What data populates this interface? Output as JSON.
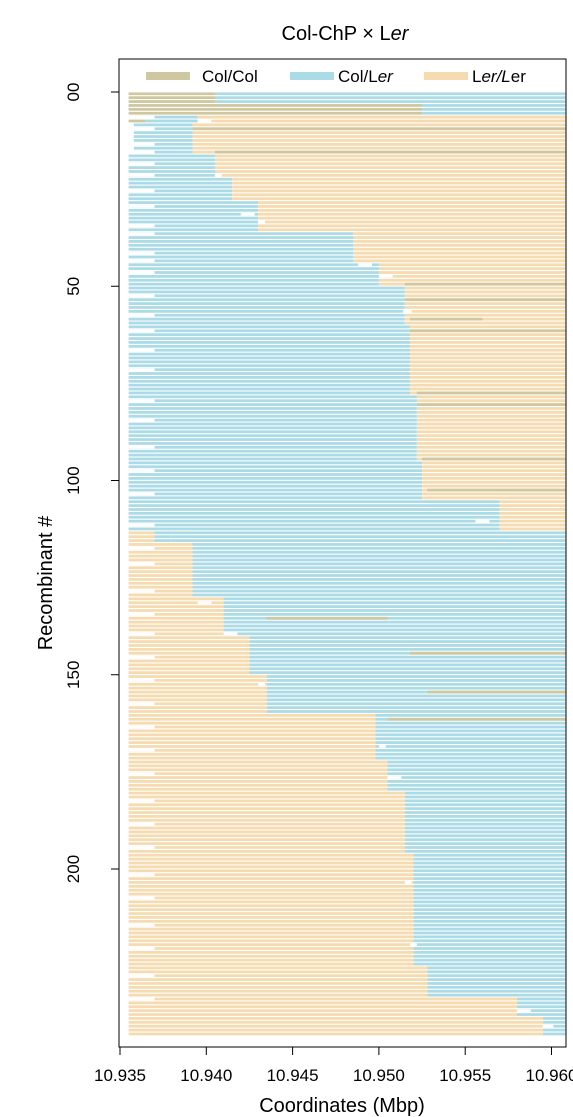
{
  "chart_data": {
    "type": "bar",
    "orientation": "horizontal-segments",
    "title": "Col-ChP × Ler",
    "title_parts": [
      "Col-ChP × L",
      "er"
    ],
    "xlabel": "Coordinates (Mbp)",
    "ylabel": "Recombinant #",
    "xlim": [
      10.935,
      10.961
    ],
    "ylim": [
      0,
      243
    ],
    "y_inverted": true,
    "x_ticks": [
      10.935,
      10.94,
      10.945,
      10.95,
      10.955,
      10.96
    ],
    "x_tick_labels": [
      "10.935",
      "10.940",
      "10.945",
      "10.950",
      "10.955",
      "10.960"
    ],
    "y_ticks": [
      0,
      50,
      100,
      150,
      200
    ],
    "y_tick_labels": [
      "00",
      "50",
      "100",
      "150",
      "200"
    ],
    "legend_position": "top",
    "legend": [
      {
        "key": "colcol",
        "label": "Col/Col",
        "parts": [
          "Col/Col",
          ""
        ]
      },
      {
        "key": "colLer",
        "label": "Col/Ler",
        "parts": [
          "Col/L",
          "er"
        ]
      },
      {
        "key": "LerLer",
        "label": "Ler/Ler",
        "parts": [
          "L",
          "er/L",
          "er"
        ]
      }
    ],
    "colors": {
      "colcol": "#cfc79f",
      "colLer": "#abdbe6",
      "LerLer": "#f6dbb0",
      "gap": "#ffffff"
    },
    "n_rows": 243,
    "blocks": [
      {
        "from": 0,
        "to": 3,
        "segments": [
          [
            10.9355,
            10.9405,
            "colcol"
          ],
          [
            10.9405,
            10.9525,
            "colLer"
          ],
          [
            10.9525,
            10.9608,
            "colLer"
          ]
        ]
      },
      {
        "from": 3,
        "to": 6,
        "segments": [
          [
            10.9355,
            10.9525,
            "colcol"
          ],
          [
            10.9525,
            10.9608,
            "colLer"
          ]
        ]
      },
      {
        "from": 6,
        "to": 8,
        "segments": [
          [
            10.9355,
            10.9365,
            "colcol"
          ],
          [
            10.9365,
            10.9395,
            "colLer"
          ],
          [
            10.9395,
            10.9608,
            "LerLer"
          ]
        ]
      },
      {
        "from": 8,
        "to": 16,
        "segments": [
          [
            10.9358,
            10.937,
            "colLer"
          ],
          [
            10.937,
            10.9392,
            "colLer"
          ],
          [
            10.9392,
            10.9608,
            "LerLer"
          ]
        ]
      },
      {
        "from": 16,
        "to": 22,
        "segments": [
          [
            10.9355,
            10.937,
            "colLer"
          ],
          [
            10.937,
            10.9405,
            "colLer"
          ],
          [
            10.9405,
            10.9608,
            "LerLer"
          ]
        ]
      },
      {
        "from": 22,
        "to": 28,
        "segments": [
          [
            10.9355,
            10.937,
            "colLer"
          ],
          [
            10.937,
            10.9415,
            "colLer"
          ],
          [
            10.9415,
            10.9608,
            "LerLer"
          ]
        ]
      },
      {
        "from": 28,
        "to": 36,
        "segments": [
          [
            10.9355,
            10.937,
            "colLer"
          ],
          [
            10.937,
            10.943,
            "colLer"
          ],
          [
            10.943,
            10.9608,
            "LerLer"
          ]
        ]
      },
      {
        "from": 36,
        "to": 44,
        "segments": [
          [
            10.9355,
            10.937,
            "colLer"
          ],
          [
            10.937,
            10.9485,
            "colLer"
          ],
          [
            10.9485,
            10.9608,
            "LerLer"
          ]
        ]
      },
      {
        "from": 44,
        "to": 50,
        "segments": [
          [
            10.9355,
            10.937,
            "colLer"
          ],
          [
            10.937,
            10.95,
            "colLer"
          ],
          [
            10.95,
            10.9608,
            "LerLer"
          ]
        ]
      },
      {
        "from": 50,
        "to": 60,
        "segments": [
          [
            10.9355,
            10.937,
            "colLer"
          ],
          [
            10.937,
            10.9515,
            "colLer"
          ],
          [
            10.9515,
            10.9608,
            "LerLer"
          ]
        ]
      },
      {
        "from": 60,
        "to": 78,
        "segments": [
          [
            10.9355,
            10.937,
            "colLer"
          ],
          [
            10.937,
            10.9518,
            "colLer"
          ],
          [
            10.9518,
            10.9608,
            "LerLer"
          ]
        ]
      },
      {
        "from": 78,
        "to": 95,
        "segments": [
          [
            10.9355,
            10.937,
            "colLer"
          ],
          [
            10.937,
            10.9522,
            "colLer"
          ],
          [
            10.9522,
            10.9608,
            "LerLer"
          ]
        ]
      },
      {
        "from": 95,
        "to": 105,
        "segments": [
          [
            10.9355,
            10.937,
            "colLer"
          ],
          [
            10.937,
            10.9525,
            "colLer"
          ],
          [
            10.9525,
            10.9608,
            "LerLer"
          ]
        ]
      },
      {
        "from": 105,
        "to": 113,
        "segments": [
          [
            10.9355,
            10.937,
            "colLer"
          ],
          [
            10.937,
            10.957,
            "colLer"
          ],
          [
            10.957,
            10.9608,
            "LerLer"
          ]
        ]
      },
      {
        "from": 113,
        "to": 116,
        "segments": [
          [
            10.9355,
            10.937,
            "LerLer"
          ],
          [
            10.937,
            10.938,
            "colLer"
          ],
          [
            10.938,
            10.9608,
            "colLer"
          ]
        ]
      },
      {
        "from": 116,
        "to": 130,
        "segments": [
          [
            10.9355,
            10.937,
            "LerLer"
          ],
          [
            10.937,
            10.9392,
            "LerLer"
          ],
          [
            10.9392,
            10.9608,
            "colLer"
          ]
        ]
      },
      {
        "from": 130,
        "to": 140,
        "segments": [
          [
            10.9355,
            10.937,
            "LerLer"
          ],
          [
            10.937,
            10.941,
            "LerLer"
          ],
          [
            10.941,
            10.9608,
            "colLer"
          ]
        ]
      },
      {
        "from": 140,
        "to": 150,
        "segments": [
          [
            10.9355,
            10.937,
            "LerLer"
          ],
          [
            10.937,
            10.9425,
            "LerLer"
          ],
          [
            10.9425,
            10.9608,
            "colLer"
          ]
        ]
      },
      {
        "from": 150,
        "to": 160,
        "segments": [
          [
            10.9355,
            10.937,
            "LerLer"
          ],
          [
            10.937,
            10.9435,
            "LerLer"
          ],
          [
            10.9435,
            10.9608,
            "colLer"
          ]
        ]
      },
      {
        "from": 160,
        "to": 172,
        "segments": [
          [
            10.9355,
            10.937,
            "LerLer"
          ],
          [
            10.937,
            10.9498,
            "LerLer"
          ],
          [
            10.9498,
            10.9608,
            "colLer"
          ]
        ]
      },
      {
        "from": 172,
        "to": 180,
        "segments": [
          [
            10.9355,
            10.937,
            "LerLer"
          ],
          [
            10.937,
            10.9505,
            "LerLer"
          ],
          [
            10.9505,
            10.9608,
            "colLer"
          ]
        ]
      },
      {
        "from": 180,
        "to": 196,
        "segments": [
          [
            10.9355,
            10.937,
            "LerLer"
          ],
          [
            10.937,
            10.9515,
            "LerLer"
          ],
          [
            10.9515,
            10.9608,
            "colLer"
          ]
        ]
      },
      {
        "from": 196,
        "to": 225,
        "segments": [
          [
            10.9355,
            10.937,
            "LerLer"
          ],
          [
            10.937,
            10.952,
            "LerLer"
          ],
          [
            10.952,
            10.9608,
            "colLer"
          ]
        ]
      },
      {
        "from": 225,
        "to": 233,
        "segments": [
          [
            10.9355,
            10.937,
            "LerLer"
          ],
          [
            10.937,
            10.9528,
            "LerLer"
          ],
          [
            10.9528,
            10.9608,
            "colLer"
          ]
        ]
      },
      {
        "from": 233,
        "to": 238,
        "segments": [
          [
            10.9355,
            10.937,
            "LerLer"
          ],
          [
            10.937,
            10.958,
            "LerLer"
          ],
          [
            10.958,
            10.9608,
            "colLer"
          ]
        ]
      },
      {
        "from": 238,
        "to": 243,
        "segments": [
          [
            10.9355,
            10.9595,
            "LerLer"
          ],
          [
            10.9595,
            10.9608,
            "colLer"
          ]
        ]
      }
    ],
    "stripes": [
      {
        "row": 9,
        "from": 10.9392,
        "to": 10.9608,
        "genotype": "colcol"
      },
      {
        "row": 15,
        "from": 10.9405,
        "to": 10.9608,
        "genotype": "colcol"
      },
      {
        "row": 49,
        "from": 10.9515,
        "to": 10.9608,
        "genotype": "colcol"
      },
      {
        "row": 53,
        "from": 10.9515,
        "to": 10.9608,
        "genotype": "colcol"
      },
      {
        "row": 58,
        "from": 10.9518,
        "to": 10.956,
        "genotype": "colcol"
      },
      {
        "row": 61,
        "from": 10.9518,
        "to": 10.9608,
        "genotype": "colcol"
      },
      {
        "row": 77,
        "from": 10.9522,
        "to": 10.9608,
        "genotype": "colcol"
      },
      {
        "row": 80,
        "from": 10.9522,
        "to": 10.9608,
        "genotype": "colcol"
      },
      {
        "row": 94,
        "from": 10.9525,
        "to": 10.9608,
        "genotype": "colcol"
      },
      {
        "row": 102,
        "from": 10.9528,
        "to": 10.9608,
        "genotype": "colcol"
      },
      {
        "row": 135,
        "from": 10.9435,
        "to": 10.9505,
        "genotype": "colcol"
      },
      {
        "row": 144,
        "from": 10.9518,
        "to": 10.9608,
        "genotype": "colcol"
      },
      {
        "row": 154,
        "from": 10.9528,
        "to": 10.9608,
        "genotype": "colcol"
      },
      {
        "row": 161,
        "from": 10.9505,
        "to": 10.9608,
        "genotype": "colcol"
      }
    ],
    "white_cuts": [
      {
        "row": 7,
        "x": 10.9395,
        "w": 0.0008
      },
      {
        "row": 21,
        "x": 10.9405,
        "w": 0.0004
      },
      {
        "row": 31,
        "x": 10.942,
        "w": 0.0008
      },
      {
        "row": 33,
        "x": 10.943,
        "w": 0.0004
      },
      {
        "row": 44,
        "x": 10.9488,
        "w": 0.0008
      },
      {
        "row": 47,
        "x": 10.95,
        "w": 0.0008
      },
      {
        "row": 56,
        "x": 10.9514,
        "w": 0.0005
      },
      {
        "row": 110,
        "x": 10.9556,
        "w": 0.0008
      },
      {
        "row": 131,
        "x": 10.9395,
        "w": 0.0008
      },
      {
        "row": 139,
        "x": 10.941,
        "w": 0.0008
      },
      {
        "row": 152,
        "x": 10.943,
        "w": 0.0004
      },
      {
        "row": 168,
        "x": 10.95,
        "w": 0.0004
      },
      {
        "row": 176,
        "x": 10.9505,
        "w": 0.0008
      },
      {
        "row": 203,
        "x": 10.9515,
        "w": 0.0004
      },
      {
        "row": 219,
        "x": 10.9518,
        "w": 0.0004
      },
      {
        "row": 236,
        "x": 10.958,
        "w": 0.0008
      },
      {
        "row": 240,
        "x": 10.9595,
        "w": 0.0006
      }
    ],
    "short_left_rows": [
      6,
      9,
      13,
      15,
      18,
      21,
      25,
      29,
      34,
      36,
      41,
      43,
      46,
      52,
      57,
      61,
      66,
      71,
      79,
      84,
      91,
      97,
      103,
      111,
      117,
      121,
      128,
      134,
      139,
      145,
      151,
      157,
      163,
      169,
      175,
      182,
      188,
      194,
      201,
      207,
      214,
      220,
      227,
      233
    ]
  }
}
